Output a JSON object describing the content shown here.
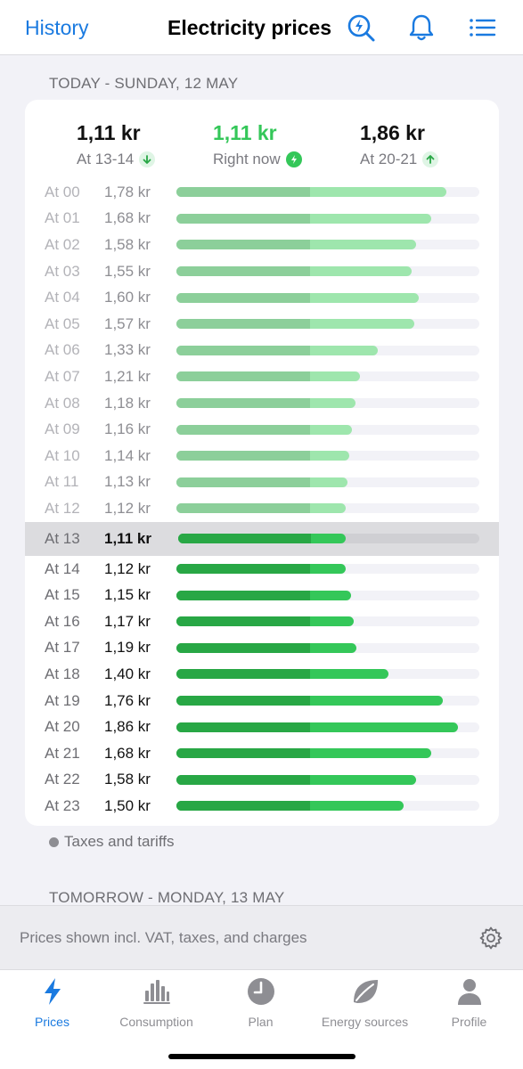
{
  "nav": {
    "back_label": "History",
    "title": "Electricity prices",
    "icons": [
      "search-bolt-icon",
      "bell-icon",
      "list-icon"
    ],
    "accent": "#1a7ae0"
  },
  "today": {
    "header": "TODAY - SUNDAY, 12 MAY",
    "summary": [
      {
        "price": "1,11 kr",
        "label": "At 13-14",
        "icon": "arrow-down-icon"
      },
      {
        "price": "1,11 kr",
        "label": "Right now",
        "icon": "bolt-icon"
      },
      {
        "price": "1,86 kr",
        "label": "At 20-21",
        "icon": "arrow-up-icon"
      }
    ],
    "current_hour_index": 13,
    "base_fraction": 0.44,
    "scale_max": 2.0,
    "hours": [
      {
        "hour": "At 00",
        "price": "1,78 kr",
        "value": 1.78
      },
      {
        "hour": "At 01",
        "price": "1,68 kr",
        "value": 1.68
      },
      {
        "hour": "At 02",
        "price": "1,58 kr",
        "value": 1.58
      },
      {
        "hour": "At 03",
        "price": "1,55 kr",
        "value": 1.55
      },
      {
        "hour": "At 04",
        "price": "1,60 kr",
        "value": 1.6
      },
      {
        "hour": "At 05",
        "price": "1,57 kr",
        "value": 1.57
      },
      {
        "hour": "At 06",
        "price": "1,33 kr",
        "value": 1.33
      },
      {
        "hour": "At 07",
        "price": "1,21 kr",
        "value": 1.21
      },
      {
        "hour": "At 08",
        "price": "1,18 kr",
        "value": 1.18
      },
      {
        "hour": "At 09",
        "price": "1,16 kr",
        "value": 1.16
      },
      {
        "hour": "At 10",
        "price": "1,14 kr",
        "value": 1.14
      },
      {
        "hour": "At 11",
        "price": "1,13 kr",
        "value": 1.13
      },
      {
        "hour": "At 12",
        "price": "1,12 kr",
        "value": 1.12
      },
      {
        "hour": "At 13",
        "price": "1,11 kr",
        "value": 1.11
      },
      {
        "hour": "At 14",
        "price": "1,12 kr",
        "value": 1.12
      },
      {
        "hour": "At 15",
        "price": "1,15 kr",
        "value": 1.15
      },
      {
        "hour": "At 16",
        "price": "1,17 kr",
        "value": 1.17
      },
      {
        "hour": "At 17",
        "price": "1,19 kr",
        "value": 1.19
      },
      {
        "hour": "At 18",
        "price": "1,40 kr",
        "value": 1.4
      },
      {
        "hour": "At 19",
        "price": "1,76 kr",
        "value": 1.76
      },
      {
        "hour": "At 20",
        "price": "1,86 kr",
        "value": 1.86
      },
      {
        "hour": "At 21",
        "price": "1,68 kr",
        "value": 1.68
      },
      {
        "hour": "At 22",
        "price": "1,58 kr",
        "value": 1.58
      },
      {
        "hour": "At 23",
        "price": "1,50 kr",
        "value": 1.5
      }
    ],
    "colors": {
      "past_base": "#8ccf9a",
      "past_extra": "#9ee6ad",
      "future_base": "#28a745",
      "future_extra": "#34c759",
      "now_green": "#34c759"
    }
  },
  "legend": {
    "label": "Taxes and tariffs"
  },
  "tomorrow": {
    "header": "TOMORROW - MONDAY, 13 MAY"
  },
  "notice": {
    "text": "Prices shown incl. VAT, taxes, and charges",
    "icon": "gear-icon"
  },
  "tabs": [
    {
      "label": "Prices",
      "icon": "bolt-icon",
      "active": true
    },
    {
      "label": "Consumption",
      "icon": "bar-chart-icon",
      "active": false
    },
    {
      "label": "Plan",
      "icon": "clock-icon",
      "active": false
    },
    {
      "label": "Energy sources",
      "icon": "leaf-icon",
      "active": false
    },
    {
      "label": "Profile",
      "icon": "person-icon",
      "active": false
    }
  ]
}
